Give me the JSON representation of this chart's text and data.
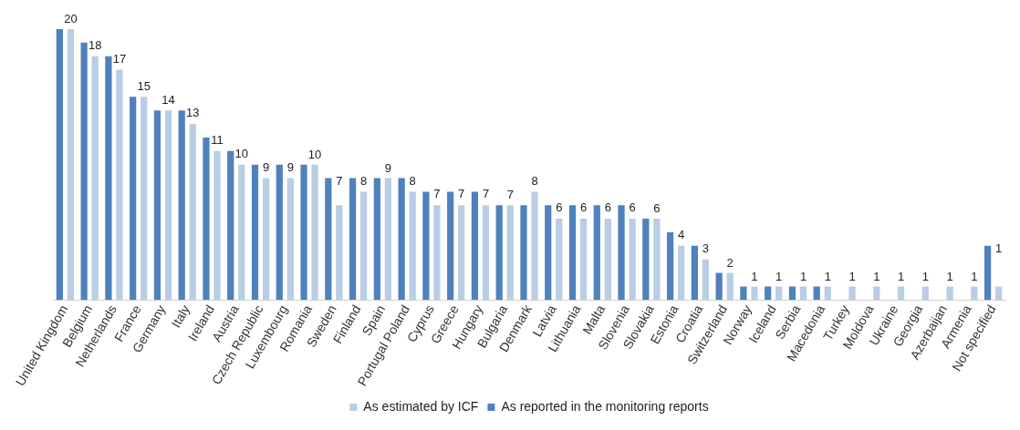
{
  "chart_data": {
    "type": "bar",
    "categories": [
      "United Kingdom",
      "Belgium",
      "Netherlands",
      "France",
      "Germany",
      "Italy",
      "Ireland",
      "Austria",
      "Czech Republic",
      "Luxembourg",
      "Romania",
      "Sweden",
      "Finland",
      "Spain",
      "Portugal Poland",
      "Cyprus",
      "Greece",
      "Hungary",
      "Bulgaria",
      "Denmark",
      "Latvia",
      "Lithuania",
      "Malta",
      "Slovenia",
      "Slovakia",
      "Estonia",
      "Croatia",
      "Switzerland",
      "Norway",
      "Iceland",
      "Serbia",
      "Macedonia",
      "Turkey",
      "Moldova",
      "Ukraine",
      "Georgia",
      "Azerbaijan",
      "Armenia",
      "Not specified"
    ],
    "series": [
      {
        "name": "As reported in the monitoring reports",
        "color": "#4f81bd",
        "values": [
          20,
          19,
          18,
          15,
          14,
          14,
          12,
          11,
          10,
          10,
          10,
          9,
          9,
          9,
          9,
          8,
          8,
          8,
          7,
          7,
          7,
          7,
          7,
          7,
          6,
          5,
          4,
          2,
          1,
          1,
          1,
          1,
          0,
          0,
          0,
          0,
          0,
          0,
          4
        ]
      },
      {
        "name": "As estimated by ICF",
        "color": "#b9cde5",
        "values": [
          20,
          18,
          17,
          15,
          14,
          13,
          11,
          10,
          9,
          9,
          10,
          7,
          8,
          9,
          8,
          7,
          7,
          7,
          7,
          8,
          6,
          6,
          6,
          6,
          6,
          4,
          3,
          2,
          1,
          1,
          1,
          1,
          1,
          1,
          1,
          1,
          1,
          1,
          1
        ],
        "value_labels": [
          "20",
          "18",
          "17",
          "15",
          "14",
          "13",
          "11",
          "10",
          "9",
          "9",
          "10",
          "7",
          "8",
          "9",
          "8",
          "7",
          "7",
          "7",
          "7",
          "8",
          "6",
          "6",
          "6",
          "6",
          "6",
          "4",
          "3",
          "2",
          "1",
          "1",
          "1",
          "1",
          "1",
          "1",
          "1",
          "1",
          "1",
          "1",
          "1"
        ]
      }
    ],
    "legend": "bottom",
    "grid": false
  }
}
